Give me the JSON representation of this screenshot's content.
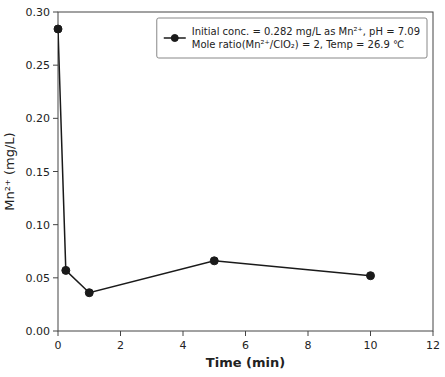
{
  "chart_data": {
    "type": "line",
    "x": [
      0,
      0.25,
      1,
      5,
      10
    ],
    "series": [
      {
        "name": "Initial conc. = 0.282 mg/L as Mn²⁺, pH = 7.09\nMole ratio(Mn²⁺/ClO₂) = 2, Temp = 26.9 ℃",
        "color": "#1a1a1a",
        "marker": "circle",
        "values": [
          0.284,
          0.057,
          0.036,
          0.066,
          0.052
        ]
      }
    ],
    "xlim": [
      0,
      12
    ],
    "ylim": [
      0.0,
      0.3
    ],
    "xticks": [
      0,
      2,
      4,
      6,
      8,
      10,
      12
    ],
    "yticks": [
      {
        "value": 0.0,
        "label": "0.00"
      },
      0.05,
      {
        "value": 0.1,
        "label": "0.10"
      },
      0.15,
      {
        "value": 0.2,
        "label": "0.20"
      },
      0.25,
      {
        "value": 0.3,
        "label": "0.30"
      }
    ],
    "xlabel": "Time (min)",
    "ylabel": "Mn²⁺ (mg/L)",
    "legend": "upper right",
    "grid": false
  }
}
